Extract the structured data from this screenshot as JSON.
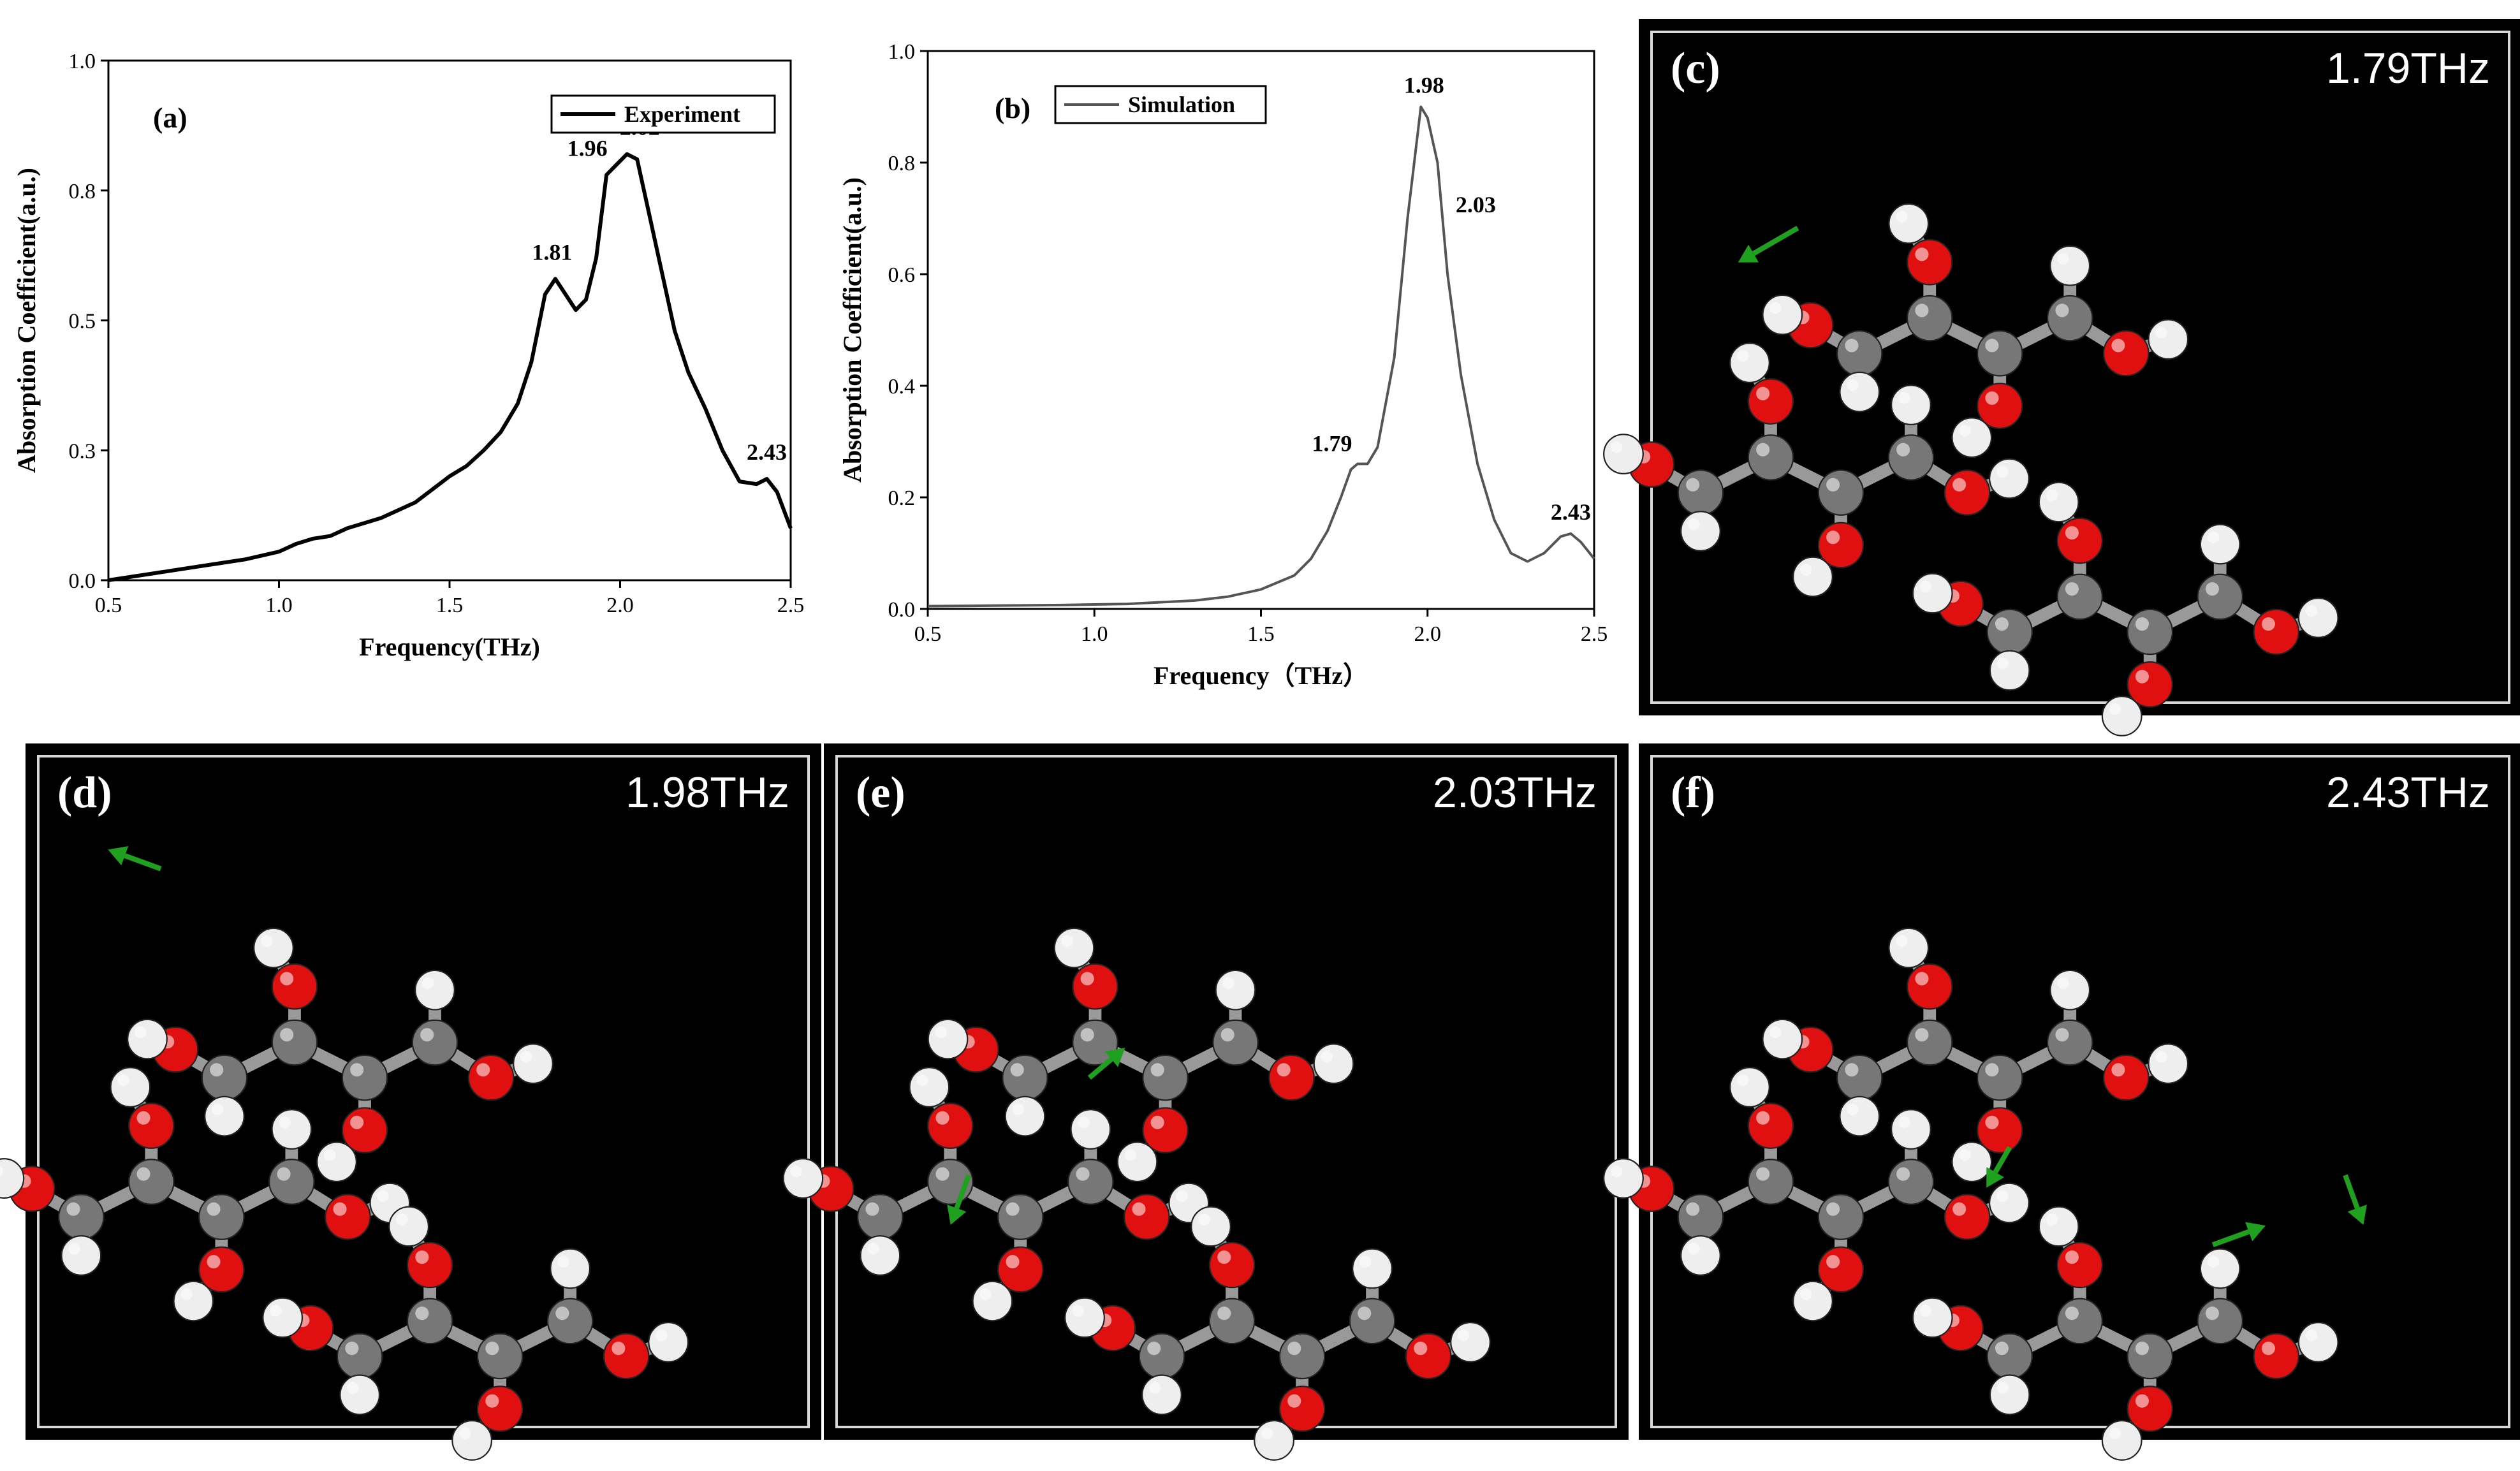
{
  "chart_data": [
    {
      "panel": "(a)",
      "type": "line",
      "xlabel": "Frequency(THz)",
      "ylabel": "Absorption Coefficient(a.u.)",
      "xlim": [
        0.5,
        2.5
      ],
      "ylim": [
        0.0,
        1.0
      ],
      "x_ticks": [
        "0.5",
        "1.0",
        "1.5",
        "2.0",
        "2.5"
      ],
      "y_ticks": [
        "0.0",
        "0.3",
        "0.5",
        "0.8",
        "1.0"
      ],
      "y_tick_values": [
        0.0,
        0.25,
        0.5,
        0.75,
        1.0
      ],
      "legend": {
        "label": "Experiment",
        "position": "top-right"
      },
      "series": [
        {
          "name": "Experiment",
          "color": "#000000",
          "points": [
            [
              0.5,
              0.0
            ],
            [
              0.6,
              0.01
            ],
            [
              0.7,
              0.02
            ],
            [
              0.8,
              0.03
            ],
            [
              0.9,
              0.04
            ],
            [
              1.0,
              0.055
            ],
            [
              1.05,
              0.07
            ],
            [
              1.1,
              0.08
            ],
            [
              1.15,
              0.085
            ],
            [
              1.2,
              0.1
            ],
            [
              1.25,
              0.11
            ],
            [
              1.3,
              0.12
            ],
            [
              1.35,
              0.135
            ],
            [
              1.4,
              0.15
            ],
            [
              1.45,
              0.175
            ],
            [
              1.5,
              0.2
            ],
            [
              1.55,
              0.22
            ],
            [
              1.6,
              0.25
            ],
            [
              1.65,
              0.285
            ],
            [
              1.7,
              0.34
            ],
            [
              1.74,
              0.42
            ],
            [
              1.78,
              0.55
            ],
            [
              1.81,
              0.58
            ],
            [
              1.84,
              0.55
            ],
            [
              1.87,
              0.52
            ],
            [
              1.9,
              0.54
            ],
            [
              1.93,
              0.62
            ],
            [
              1.96,
              0.78
            ],
            [
              1.99,
              0.8
            ],
            [
              2.02,
              0.82
            ],
            [
              2.05,
              0.81
            ],
            [
              2.08,
              0.72
            ],
            [
              2.12,
              0.6
            ],
            [
              2.16,
              0.48
            ],
            [
              2.2,
              0.4
            ],
            [
              2.25,
              0.33
            ],
            [
              2.3,
              0.25
            ],
            [
              2.35,
              0.19
            ],
            [
              2.4,
              0.185
            ],
            [
              2.43,
              0.195
            ],
            [
              2.46,
              0.17
            ],
            [
              2.5,
              0.1
            ]
          ]
        }
      ],
      "annotations": [
        {
          "text": "1.81",
          "x": 1.81,
          "y": 0.58
        },
        {
          "text": "1.96",
          "x": 1.96,
          "y": 0.78
        },
        {
          "text": "2.02",
          "x": 2.02,
          "y": 0.82
        },
        {
          "text": "2.43",
          "x": 2.43,
          "y": 0.195
        }
      ]
    },
    {
      "panel": "(b)",
      "type": "line",
      "xlabel": "Frequency（THz）",
      "ylabel": "Absorption Coefficient(a.u.)",
      "xlim": [
        0.5,
        2.5
      ],
      "ylim": [
        0.0,
        1.0
      ],
      "x_ticks": [
        "0.5",
        "1.0",
        "1.5",
        "2.0",
        "2.5"
      ],
      "y_ticks": [
        "0.0",
        "0.2",
        "0.4",
        "0.6",
        "0.8",
        "1.0"
      ],
      "y_tick_values": [
        0.0,
        0.2,
        0.4,
        0.6,
        0.8,
        1.0
      ],
      "legend": {
        "label": "Simulation",
        "position": "top-left"
      },
      "series": [
        {
          "name": "Simulation",
          "color": "#555555",
          "points": [
            [
              0.5,
              0.005
            ],
            [
              0.7,
              0.006
            ],
            [
              0.9,
              0.007
            ],
            [
              1.1,
              0.009
            ],
            [
              1.3,
              0.015
            ],
            [
              1.4,
              0.022
            ],
            [
              1.5,
              0.035
            ],
            [
              1.6,
              0.06
            ],
            [
              1.65,
              0.09
            ],
            [
              1.7,
              0.14
            ],
            [
              1.74,
              0.2
            ],
            [
              1.77,
              0.25
            ],
            [
              1.79,
              0.26
            ],
            [
              1.82,
              0.26
            ],
            [
              1.85,
              0.29
            ],
            [
              1.9,
              0.45
            ],
            [
              1.94,
              0.7
            ],
            [
              1.98,
              0.9
            ],
            [
              2.0,
              0.88
            ],
            [
              2.03,
              0.8
            ],
            [
              2.06,
              0.6
            ],
            [
              2.1,
              0.42
            ],
            [
              2.15,
              0.26
            ],
            [
              2.2,
              0.16
            ],
            [
              2.25,
              0.1
            ],
            [
              2.3,
              0.085
            ],
            [
              2.35,
              0.1
            ],
            [
              2.4,
              0.13
            ],
            [
              2.43,
              0.135
            ],
            [
              2.46,
              0.12
            ],
            [
              2.5,
              0.09
            ]
          ]
        }
      ],
      "annotations": [
        {
          "text": "1.79",
          "x": 1.79,
          "y": 0.26
        },
        {
          "text": "1.98",
          "x": 1.98,
          "y": 0.9
        },
        {
          "text": "2.03",
          "x": 2.03,
          "y": 0.8
        },
        {
          "text": "2.43",
          "x": 2.43,
          "y": 0.135
        }
      ]
    }
  ],
  "mode_panels": [
    {
      "label": "(c)",
      "frequency": "1.79THz"
    },
    {
      "label": "(d)",
      "frequency": "1.98THz"
    },
    {
      "label": "(e)",
      "frequency": "2.03THz"
    },
    {
      "label": "(f)",
      "frequency": "2.43THz"
    }
  ],
  "colors": {
    "carbon": "#777777",
    "hydrogen": "#eeeeee",
    "oxygen": "#e01010",
    "displacement_arrow": "#1fa01f",
    "background": "#000000"
  }
}
